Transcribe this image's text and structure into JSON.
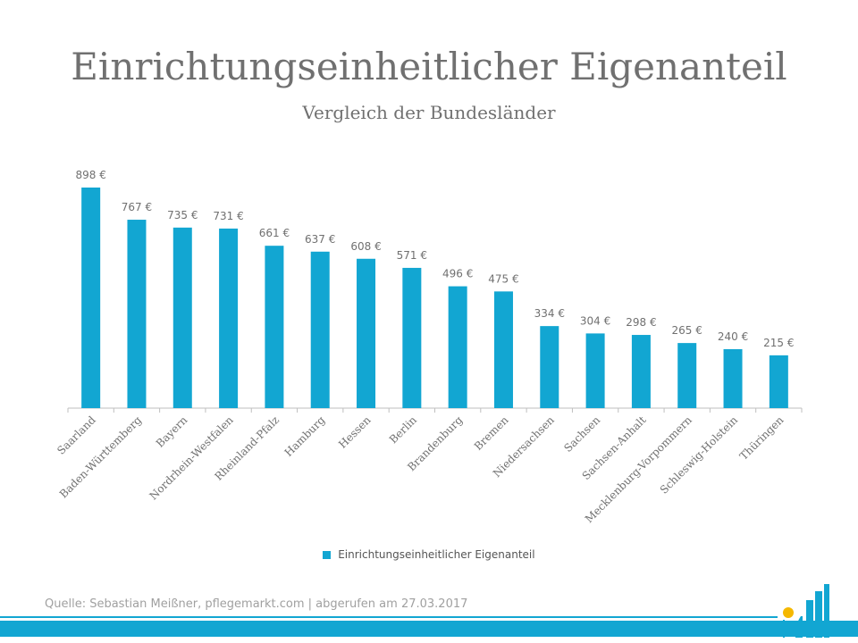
{
  "chart_data": {
    "type": "bar",
    "title": "Einrichtungseinheitlicher Eigenanteil",
    "subtitle": "Vergleich der Bundesländer",
    "xlabel": "",
    "ylabel": "",
    "ylim": [
      0,
      1000
    ],
    "grid": false,
    "legend_position": "bottom",
    "categories": [
      "Saarland",
      "Baden-Württemberg",
      "Bayern",
      "Nordrhein-Westfalen",
      "Rheinland-Pfalz",
      "Hamburg",
      "Hessen",
      "Berlin",
      "Brandenburg",
      "Bremen",
      "Niedersachsen",
      "Sachsen",
      "Sachsen-Anhalt",
      "Mecklenburg-Vorpommern",
      "Schleswig-Holstein",
      "Thüringen"
    ],
    "series": [
      {
        "name": "Einrichtungseinheitlicher Eigenanteil",
        "values": [
          898,
          767,
          735,
          731,
          661,
          637,
          608,
          571,
          496,
          475,
          334,
          304,
          298,
          265,
          240,
          215
        ],
        "labels": [
          "898 €",
          "767 €",
          "735 €",
          "731 €",
          "661 €",
          "637 €",
          "608 €",
          "571 €",
          "496 €",
          "475 €",
          "334 €",
          "304 €",
          "298 €",
          "265 €",
          "240 €",
          "215 €"
        ]
      }
    ]
  },
  "colors": {
    "bar": "#12a6d2",
    "text": "#707070",
    "axis": "#bfbfbf",
    "accent": "#f5b800"
  },
  "legend": {
    "label": "Einrichtungseinheitlicher Eigenanteil"
  },
  "footer": {
    "source": "Quelle: Sebastian Meißner, pflegemarkt.com | abgerufen am 27.03.2017"
  }
}
